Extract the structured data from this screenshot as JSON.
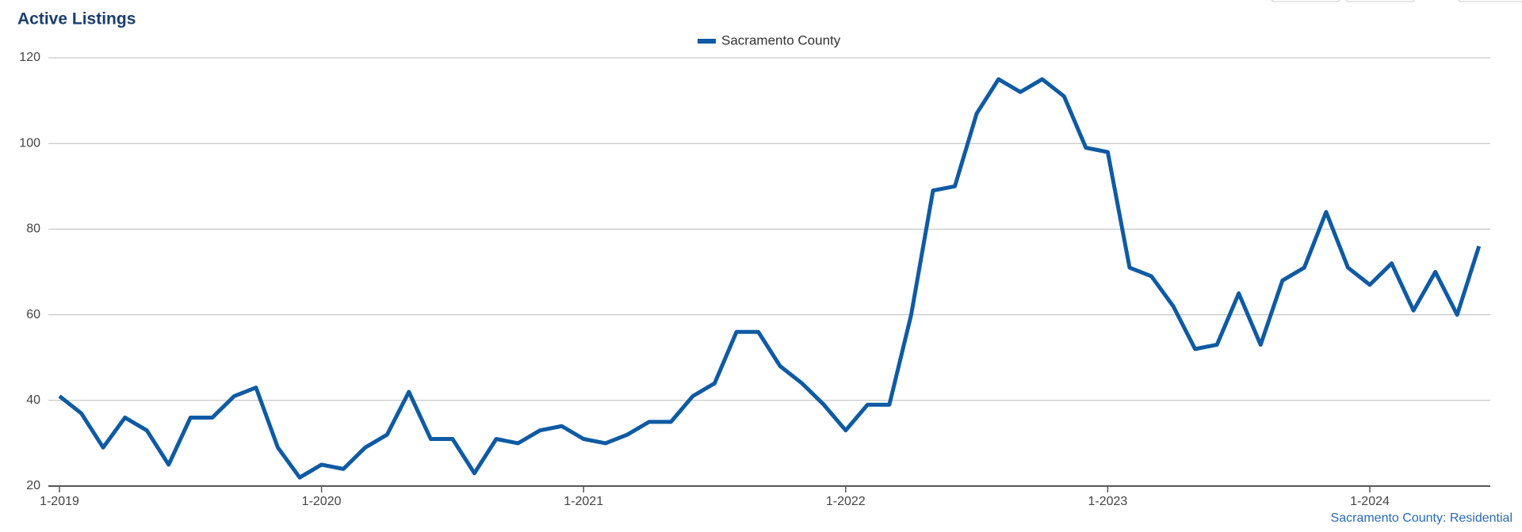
{
  "chart_data": {
    "type": "line",
    "title": "Active Listings",
    "source": "Sacramento County: Residential",
    "categories": [
      "1-2019",
      null,
      null,
      null,
      null,
      null,
      null,
      null,
      null,
      null,
      null,
      null,
      "1-2020",
      null,
      null,
      null,
      null,
      null,
      null,
      null,
      null,
      null,
      null,
      null,
      "1-2021",
      null,
      null,
      null,
      null,
      null,
      null,
      null,
      null,
      null,
      null,
      null,
      "1-2022",
      null,
      null,
      null,
      null,
      null,
      null,
      null,
      null,
      null,
      null,
      null,
      "1-2023",
      null,
      null,
      null,
      null,
      null,
      null,
      null,
      null,
      null,
      null,
      null,
      "1-2024",
      null,
      null,
      null,
      null,
      null
    ],
    "series": [
      {
        "name": "Sacramento County",
        "color": "#0f5aa3",
        "values": [
          41,
          37,
          29,
          36,
          33,
          25,
          36,
          36,
          41,
          43,
          29,
          22,
          25,
          24,
          29,
          32,
          42,
          31,
          31,
          23,
          31,
          30,
          33,
          34,
          31,
          30,
          32,
          35,
          35,
          41,
          44,
          56,
          56,
          48,
          44,
          39,
          33,
          39,
          39,
          60,
          89,
          90,
          107,
          115,
          112,
          115,
          111,
          99,
          98,
          71,
          69,
          62,
          52,
          53,
          65,
          53,
          68,
          71,
          84,
          71,
          67,
          72,
          61,
          70,
          60,
          76
        ]
      }
    ],
    "ylim": [
      20,
      120
    ],
    "yticks": [
      20,
      40,
      60,
      80,
      100,
      120
    ],
    "grid": true
  }
}
